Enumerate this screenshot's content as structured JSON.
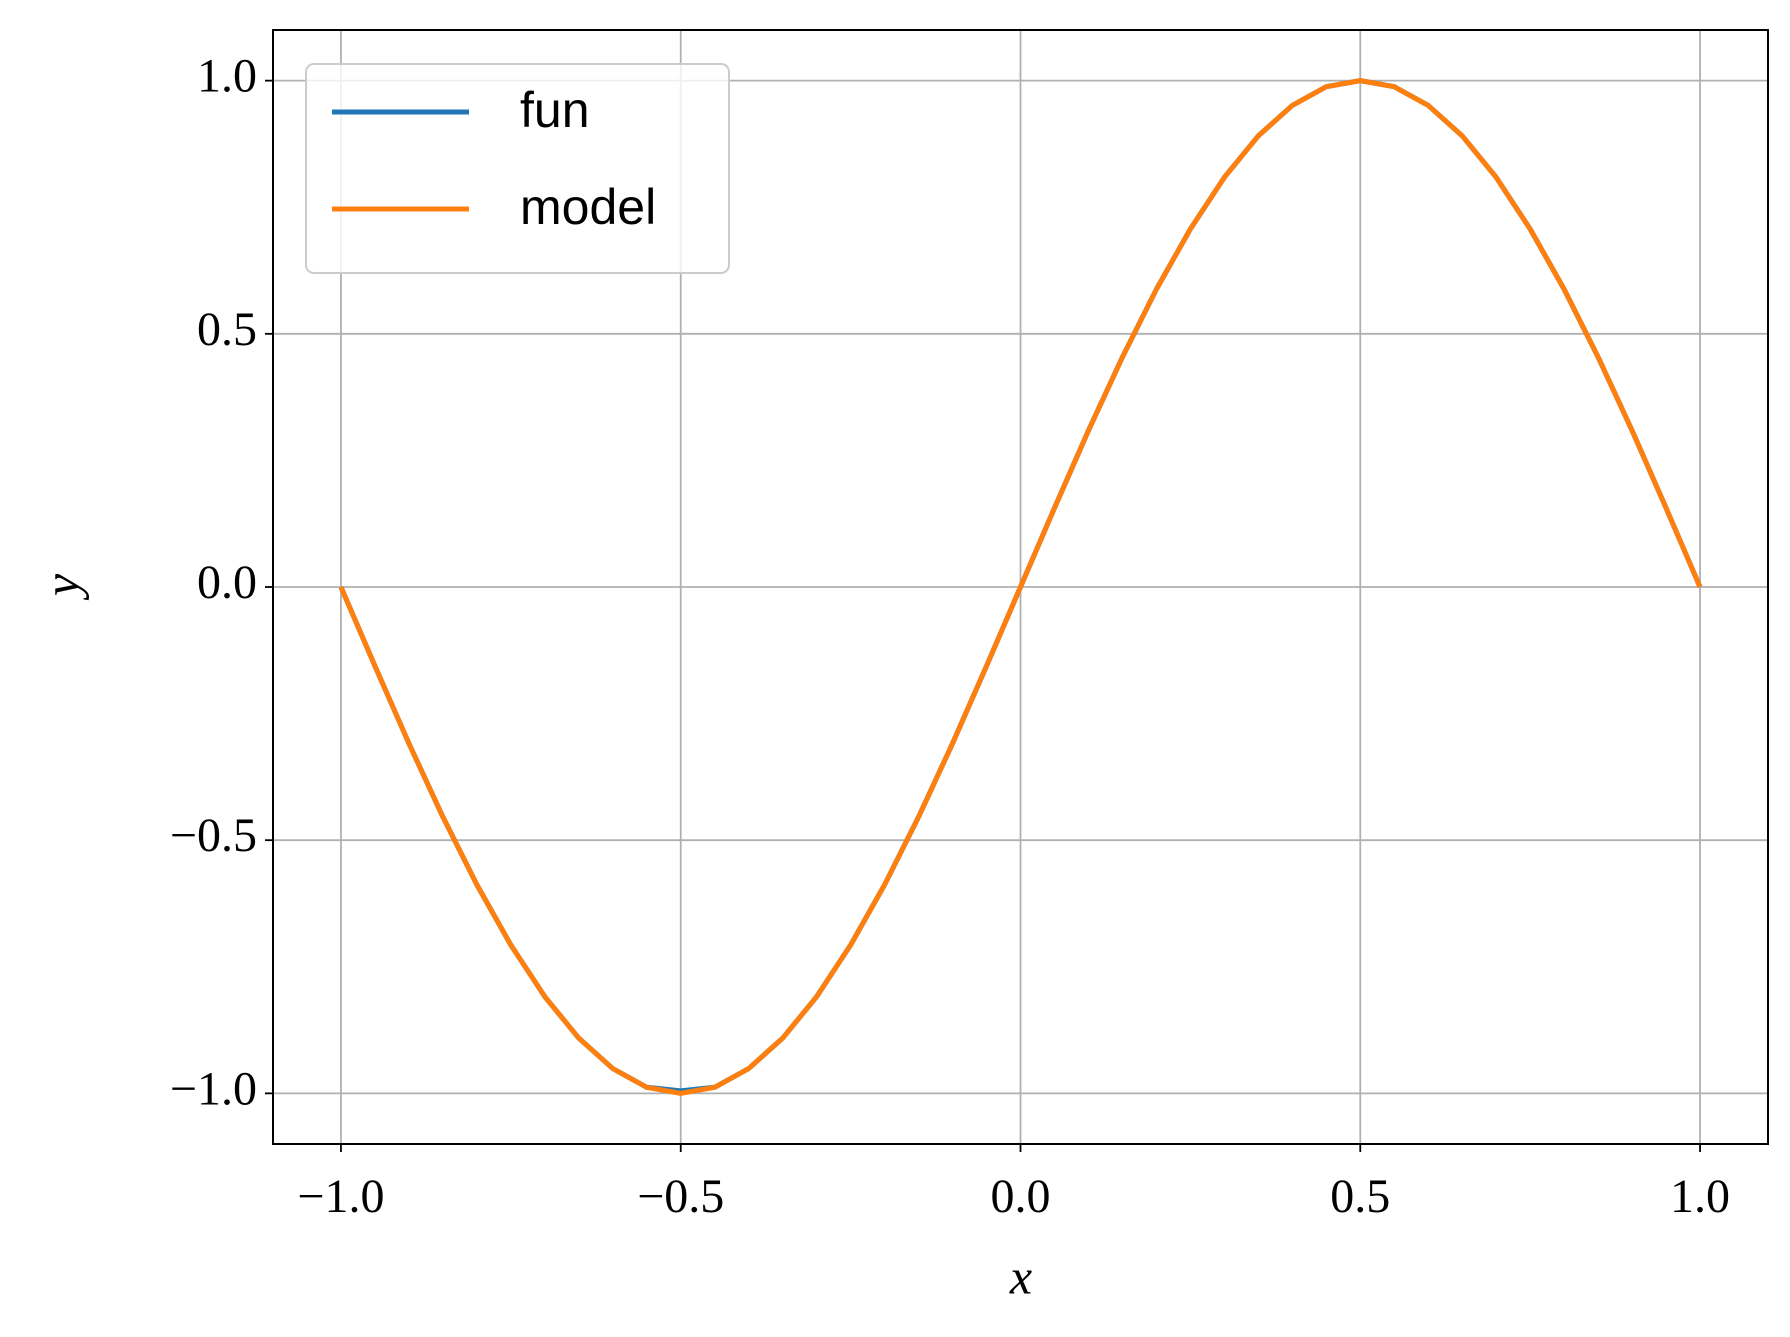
{
  "chart_data": {
    "type": "line",
    "xlabel": "x",
    "ylabel": "y",
    "x": [
      -1,
      -0.95,
      -0.9,
      -0.85,
      -0.8,
      -0.75,
      -0.7,
      -0.65,
      -0.6,
      -0.55,
      -0.5,
      -0.45,
      -0.4,
      -0.35,
      -0.3,
      -0.25,
      -0.2,
      -0.15,
      -0.1,
      -0.05,
      0,
      0.05,
      0.1,
      0.15,
      0.2,
      0.25,
      0.3,
      0.35,
      0.4,
      0.45,
      0.5,
      0.55,
      0.6,
      0.65,
      0.7,
      0.75,
      0.8,
      0.85,
      0.9,
      0.95,
      1
    ],
    "series": [
      {
        "name": "fun",
        "color": "#1f77b4",
        "values": [
          0,
          -0.156,
          -0.309,
          -0.454,
          -0.588,
          -0.707,
          -0.809,
          -0.891,
          -0.951,
          -0.988,
          -0.995,
          -0.988,
          -0.951,
          -0.891,
          -0.809,
          -0.707,
          -0.588,
          -0.454,
          -0.309,
          -0.156,
          0,
          0.156,
          0.309,
          0.454,
          0.588,
          0.707,
          0.809,
          0.891,
          0.951,
          0.988,
          1,
          0.988,
          0.951,
          0.891,
          0.809,
          0.707,
          0.588,
          0.454,
          0.309,
          0.156,
          0
        ]
      },
      {
        "name": "model",
        "color": "#ff7f0e",
        "values": [
          0,
          -0.156,
          -0.309,
          -0.454,
          -0.588,
          -0.707,
          -0.809,
          -0.891,
          -0.951,
          -0.988,
          -1,
          -0.988,
          -0.951,
          -0.891,
          -0.809,
          -0.707,
          -0.588,
          -0.454,
          -0.309,
          -0.156,
          0,
          0.156,
          0.309,
          0.454,
          0.588,
          0.707,
          0.809,
          0.891,
          0.951,
          0.988,
          1,
          0.988,
          0.951,
          0.891,
          0.809,
          0.707,
          0.588,
          0.454,
          0.309,
          0.156,
          0
        ]
      }
    ],
    "xlim": [
      -1.1,
      1.1
    ],
    "ylim": [
      -1.1,
      1.1
    ],
    "xticks": [
      {
        "value": -1,
        "label": "−1.0"
      },
      {
        "value": -0.5,
        "label": "−0.5"
      },
      {
        "value": 0,
        "label": "0.0"
      },
      0.5,
      {
        "value": 1,
        "label": "1.0"
      }
    ],
    "yticks": [
      {
        "value": -1,
        "label": "−1.0"
      },
      {
        "value": -0.5,
        "label": "−0.5"
      },
      {
        "value": 0,
        "label": "0.0"
      },
      0.5,
      {
        "value": 1,
        "label": "1.0"
      }
    ],
    "grid": true,
    "legend": "upper left"
  }
}
